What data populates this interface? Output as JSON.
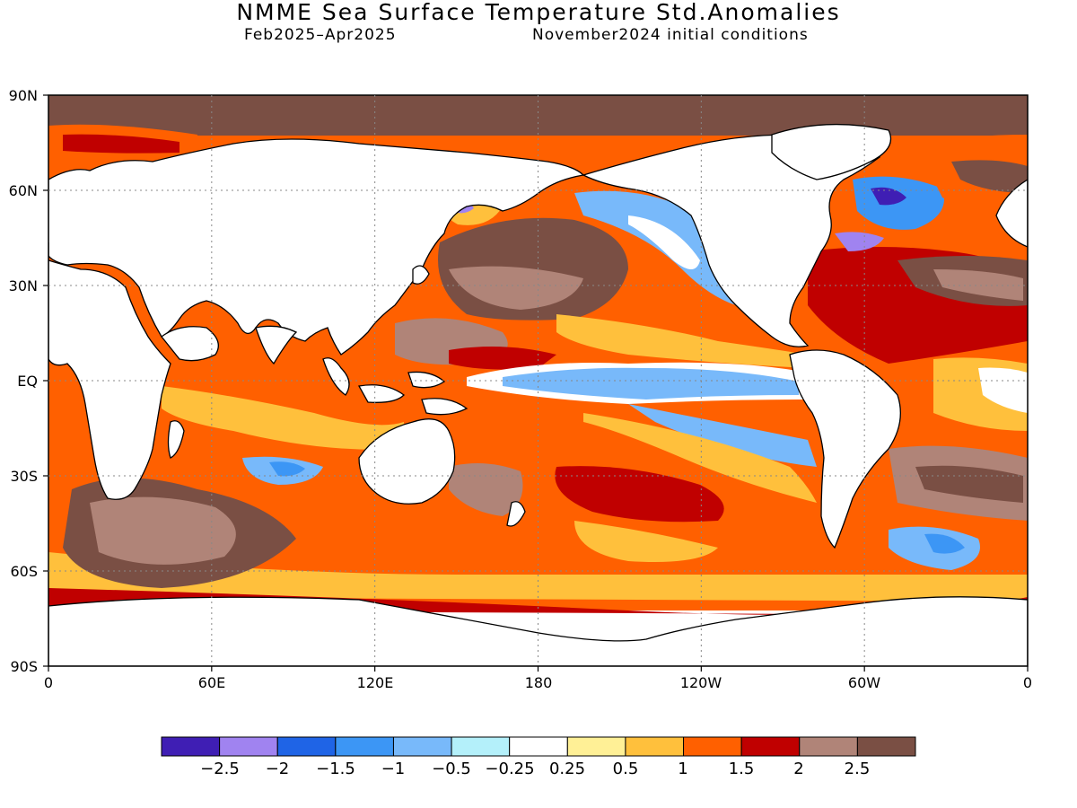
{
  "title": "NMME Sea Surface Temperature Std.Anomalies",
  "period": "Feb2025–Apr2025",
  "init": "November2024 initial conditions",
  "lat_labels": [
    "90N",
    "60N",
    "30N",
    "EQ",
    "30S",
    "60S",
    "90S"
  ],
  "lon_labels": [
    "0",
    "60E",
    "120E",
    "180",
    "120W",
    "60W",
    "0"
  ],
  "colorbar": {
    "colors": [
      "#3f1eb4",
      "#a083f0",
      "#1f64e6",
      "#3c96f5",
      "#78b9fa",
      "#b4f0fa",
      "#ffffff",
      "#fff096",
      "#ffc03c",
      "#ff6000",
      "#c00000",
      "#b08478",
      "#7a4f44"
    ],
    "labels": [
      "−2.5",
      "−2",
      "−1.5",
      "−1",
      "−0.5",
      "−0.25",
      "0.25",
      "0.5",
      "1",
      "1.5",
      "2",
      "2.5"
    ]
  }
}
